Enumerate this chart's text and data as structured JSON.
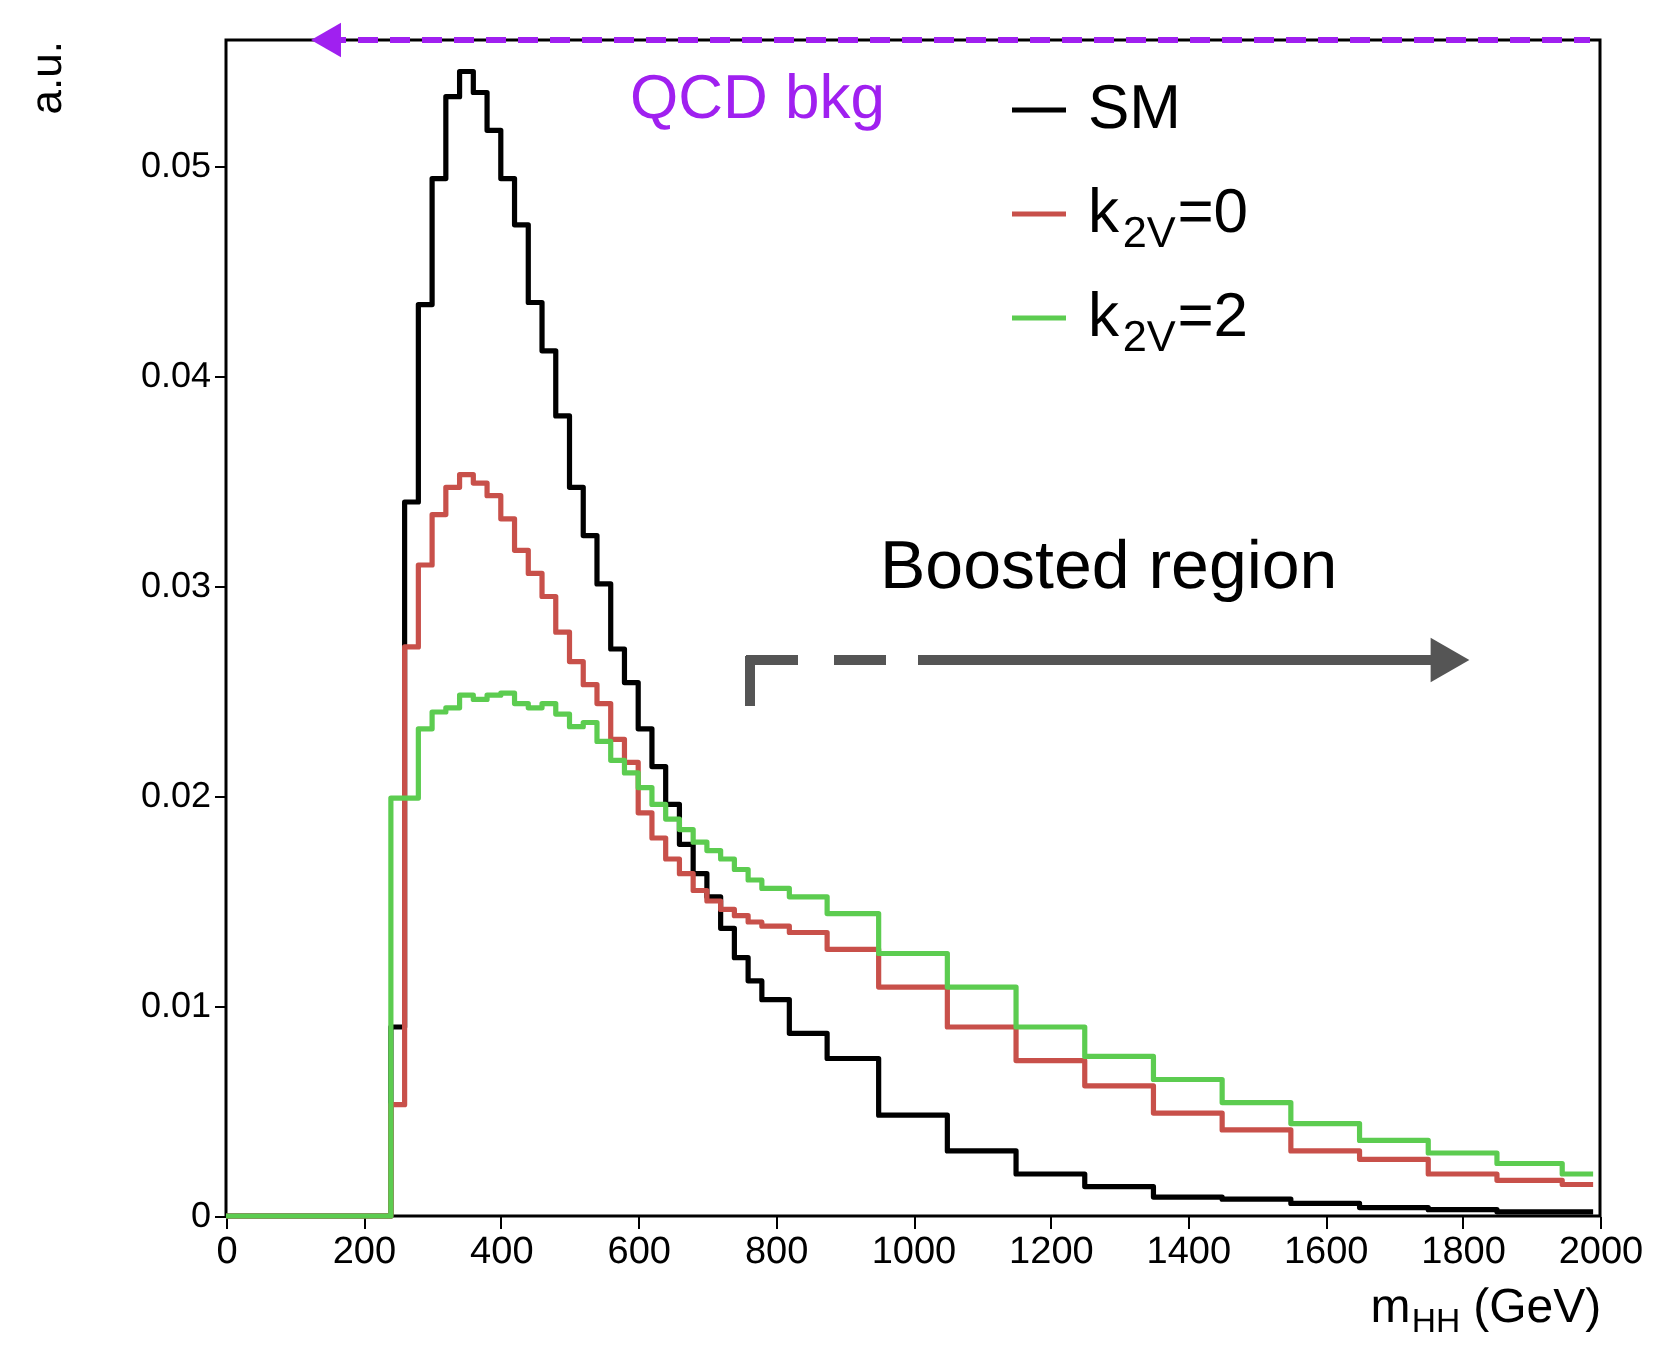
{
  "chart_data": {
    "type": "step",
    "xlabel": "m$_{HH}$ (GeV)",
    "ylabel": "a.u.",
    "x": [
      0,
      230,
      250,
      270,
      290,
      310,
      330,
      350,
      370,
      390,
      410,
      430,
      450,
      470,
      490,
      510,
      530,
      550,
      570,
      590,
      610,
      630,
      650,
      670,
      690,
      710,
      730,
      750,
      770,
      790,
      850,
      900,
      1000,
      1100,
      1200,
      1300,
      1400,
      1500,
      1600,
      1700,
      1800,
      1900,
      1990
    ],
    "series": [
      {
        "name": "SM",
        "color": "#000000",
        "values": [
          0,
          0,
          0.009,
          0.034,
          0.0434,
          0.0494,
          0.0533,
          0.0545,
          0.0535,
          0.0517,
          0.0494,
          0.0472,
          0.0435,
          0.0412,
          0.0381,
          0.0347,
          0.0324,
          0.0301,
          0.027,
          0.0254,
          0.0232,
          0.0214,
          0.0196,
          0.0177,
          0.0163,
          0.0152,
          0.0137,
          0.0123,
          0.0112,
          0.0103,
          0.0087,
          0.0075,
          0.0048,
          0.0031,
          0.002,
          0.0014,
          0.0009,
          0.0008,
          0.0006,
          0.0004,
          0.0003,
          0.0002,
          0.0002
        ]
      },
      {
        "name": "k$_{2V}$=0",
        "color": "#c8504a",
        "values": [
          0,
          0,
          0.0053,
          0.0271,
          0.031,
          0.0334,
          0.0347,
          0.0353,
          0.0349,
          0.0343,
          0.0332,
          0.0317,
          0.0306,
          0.0295,
          0.0278,
          0.0264,
          0.0253,
          0.0244,
          0.0227,
          0.0216,
          0.0192,
          0.018,
          0.017,
          0.0163,
          0.0155,
          0.015,
          0.0146,
          0.0143,
          0.014,
          0.0138,
          0.0135,
          0.0127,
          0.0109,
          0.009,
          0.0074,
          0.0062,
          0.0049,
          0.0041,
          0.0031,
          0.0027,
          0.002,
          0.0017,
          0.0015
        ]
      },
      {
        "name": "k$_{2V}$=2",
        "color": "#5ccc50",
        "values": [
          0,
          0,
          0.0199,
          0.0199,
          0.0232,
          0.024,
          0.0242,
          0.0248,
          0.0246,
          0.0248,
          0.0249,
          0.0244,
          0.0242,
          0.0244,
          0.0239,
          0.0233,
          0.0235,
          0.0226,
          0.0217,
          0.0211,
          0.0204,
          0.0196,
          0.0189,
          0.0184,
          0.0178,
          0.0174,
          0.017,
          0.0165,
          0.016,
          0.0156,
          0.0152,
          0.0144,
          0.0125,
          0.0109,
          0.009,
          0.0076,
          0.0065,
          0.0054,
          0.0044,
          0.0036,
          0.003,
          0.0025,
          0.002
        ]
      }
    ],
    "xlim": [
      0,
      2000
    ],
    "xticks": [
      0,
      200,
      400,
      600,
      800,
      1000,
      1200,
      1400,
      1600,
      1800,
      2000
    ],
    "ylim": [
      0,
      0.056
    ],
    "yticks": [
      0,
      0.01,
      0.02,
      0.03,
      0.04,
      0.05
    ],
    "grid": false,
    "legend": "top right",
    "line_style": "solid",
    "marker": "none",
    "annotations": [
      "QCD bkg",
      "Boosted region"
    ]
  }
}
